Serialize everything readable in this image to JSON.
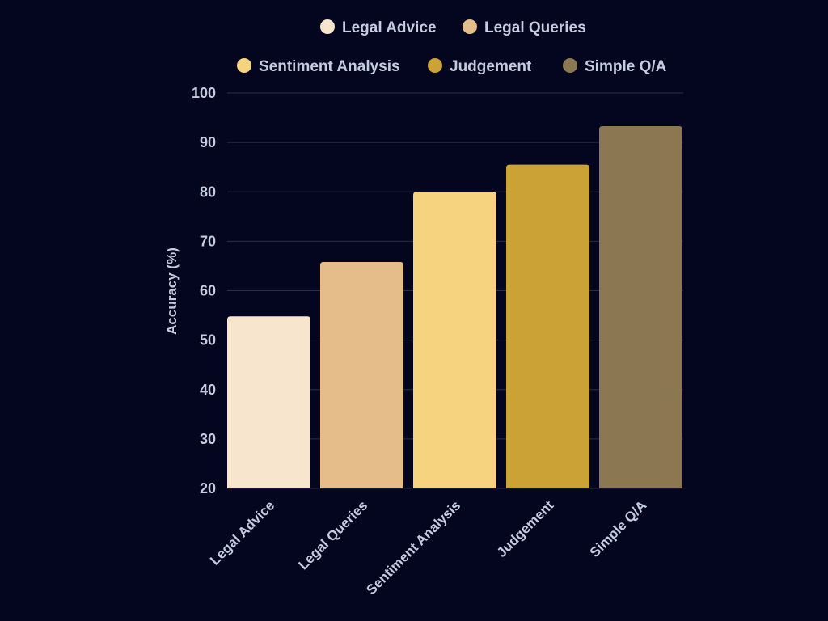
{
  "chart_data": {
    "type": "bar",
    "categories": [
      "Legal Advice",
      "Legal Queries",
      "Sentiment Analysis",
      "Judgement",
      "Simple Q/A"
    ],
    "values": [
      54.8,
      65.8,
      80,
      85.5,
      93.3
    ],
    "colors": [
      "#f7e6cd",
      "#e4bd8b",
      "#f6d47f",
      "#cba236",
      "#8b7752"
    ],
    "title": "",
    "xlabel": "",
    "ylabel": "Accuracy (%)",
    "ylim": [
      20,
      100
    ],
    "yticks": [
      20,
      30,
      40,
      50,
      60,
      70,
      80,
      90,
      100
    ],
    "grid": true,
    "legend": {
      "placement": "top",
      "entries": [
        "Legal Advice",
        "Legal Queries",
        "Sentiment Analysis",
        "Judgement",
        "Simple Q/A"
      ]
    }
  },
  "colors": {
    "background": "#03061e",
    "text": "#c4ccdf",
    "grid": "#2a2f48"
  }
}
